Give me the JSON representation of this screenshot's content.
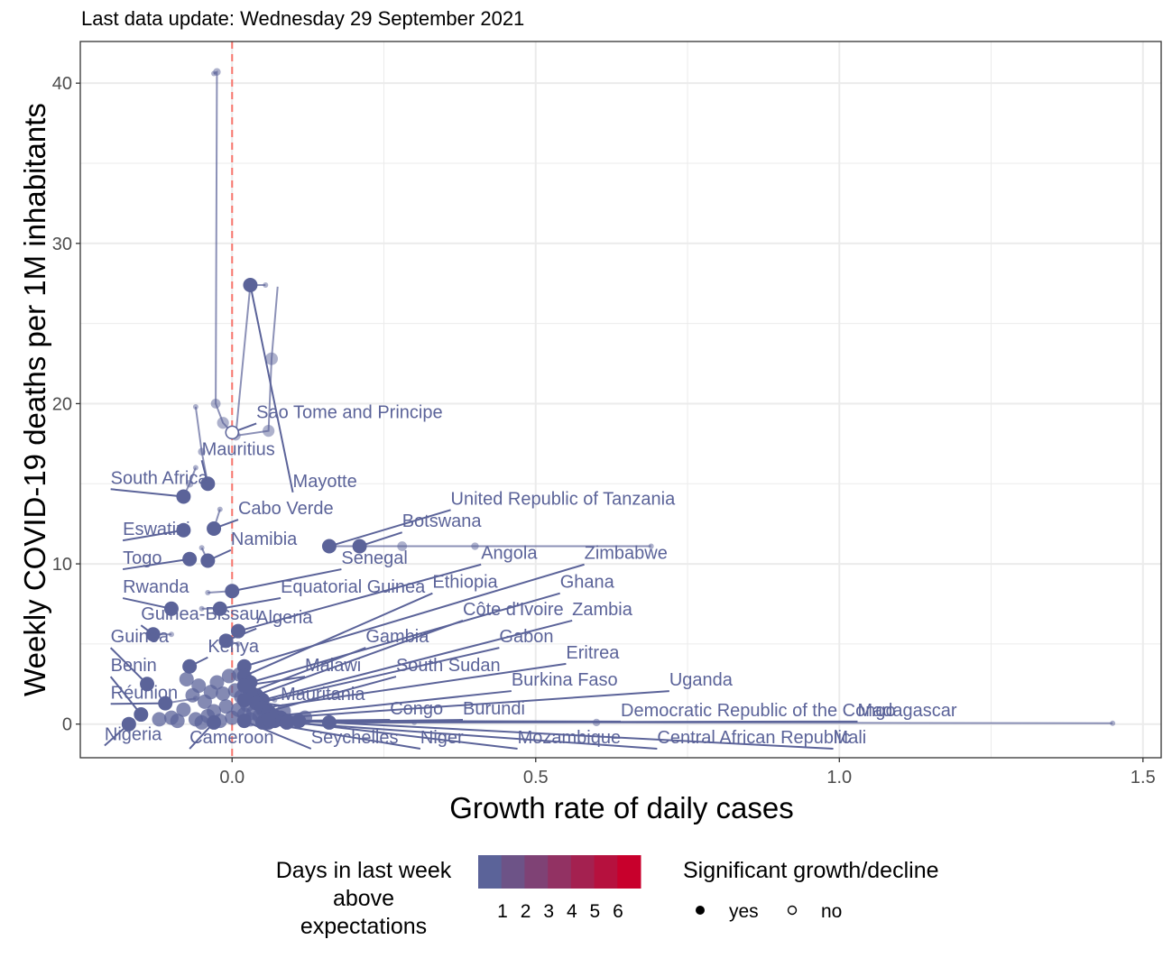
{
  "chart_data": {
    "type": "scatter",
    "subtitle": "Last data update: Wednesday 29 September 2021",
    "xlabel": "Growth rate of daily cases",
    "ylabel": "Weekly COVID-19 deaths per 1M inhabitants",
    "xlim": [
      -0.25,
      1.53
    ],
    "ylim": [
      -2.1,
      42.6
    ],
    "x_ticks": [
      0.0,
      0.5,
      1.0,
      1.5
    ],
    "x_tick_labels": [
      "0.0",
      "0.5",
      "1.0",
      "1.5"
    ],
    "y_ticks": [
      0,
      10,
      20,
      30,
      40
    ],
    "y_tick_labels": [
      "0",
      "10",
      "20",
      "30",
      "40"
    ],
    "reference_line_x": 0,
    "grid": true,
    "colors": {
      "point": "#5b6399",
      "trail": "#a6aac8",
      "reference_line": "#f8766d",
      "label": "#5b6399",
      "grid": "#ebebeb",
      "scale_low": "#5b6399",
      "scale_high": "#c8002c"
    },
    "points": [
      {
        "name": "Sao Tome and Principe",
        "x": 0.0,
        "y": 18.2,
        "significant": false,
        "label_x": 0.04,
        "label_y": 19.1,
        "trail": [
          [
            -0.03,
            40.6
          ],
          [
            -0.025,
            40.7
          ],
          [
            -0.027,
            20.0
          ],
          [
            -0.015,
            18.8
          ],
          [
            0.0,
            18.2
          ]
        ]
      },
      {
        "name": "Mauritius",
        "x": -0.04,
        "y": 15.0,
        "significant": true,
        "label_x": -0.05,
        "label_y": 16.8,
        "trail": [
          [
            -0.06,
            19.8
          ],
          [
            -0.05,
            17.0
          ],
          [
            -0.04,
            15.0
          ]
        ]
      },
      {
        "name": "Mayotte",
        "x": 0.03,
        "y": 27.4,
        "significant": true,
        "label_x": 0.1,
        "label_y": 14.8,
        "trail": [
          [
            0.055,
            27.4
          ],
          [
            0.03,
            27.4
          ],
          [
            0.006,
            18.0
          ],
          [
            0.06,
            18.3
          ],
          [
            0.065,
            22.8
          ],
          [
            0.075,
            27.3
          ]
        ]
      },
      {
        "name": "South Africa",
        "x": -0.08,
        "y": 14.2,
        "significant": true,
        "label_x": -0.2,
        "label_y": 15.0,
        "trail": [
          [
            -0.06,
            16.0
          ],
          [
            -0.07,
            15.0
          ],
          [
            -0.08,
            14.2
          ]
        ]
      },
      {
        "name": "Cabo Verde",
        "x": -0.03,
        "y": 12.2,
        "significant": true,
        "label_x": 0.01,
        "label_y": 13.1,
        "trail": [
          [
            -0.02,
            13.4
          ],
          [
            -0.03,
            12.2
          ]
        ]
      },
      {
        "name": "United Republic of Tanzania",
        "x": 0.16,
        "y": 11.1,
        "significant": true,
        "label_x": 0.36,
        "label_y": 13.7,
        "trail": [
          [
            0.69,
            11.1
          ],
          [
            0.4,
            11.1
          ],
          [
            0.28,
            11.1
          ],
          [
            0.21,
            11.1
          ],
          [
            0.16,
            11.1
          ]
        ]
      },
      {
        "name": "Botswana",
        "x": 0.21,
        "y": 11.1,
        "significant": true,
        "label_x": 0.28,
        "label_y": 12.3,
        "trail": []
      },
      {
        "name": "Eswatini",
        "x": -0.08,
        "y": 12.1,
        "significant": true,
        "label_x": -0.18,
        "label_y": 11.8,
        "trail": [
          [
            -0.08,
            12.1
          ]
        ]
      },
      {
        "name": "Namibia",
        "x": -0.04,
        "y": 10.2,
        "significant": true,
        "label_x": -0.002,
        "label_y": 11.2,
        "trail": [
          [
            -0.05,
            11.0
          ],
          [
            -0.04,
            10.2
          ]
        ]
      },
      {
        "name": "Togo",
        "x": -0.07,
        "y": 10.3,
        "significant": true,
        "label_x": -0.18,
        "label_y": 10.0,
        "trail": []
      },
      {
        "name": "Senegal",
        "x": 0.0,
        "y": 8.3,
        "significant": true,
        "label_x": 0.18,
        "label_y": 10.0,
        "trail": [
          [
            -0.04,
            8.2
          ],
          [
            0.0,
            8.3
          ]
        ]
      },
      {
        "name": "Angola",
        "x": 0.01,
        "y": 5.8,
        "significant": true,
        "label_x": 0.41,
        "label_y": 10.3,
        "trail": []
      },
      {
        "name": "Zimbabwe",
        "x": 0.02,
        "y": 3.6,
        "significant": true,
        "label_x": 0.58,
        "label_y": 10.3,
        "trail": []
      },
      {
        "name": "Rwanda",
        "x": -0.1,
        "y": 7.2,
        "significant": true,
        "label_x": -0.18,
        "label_y": 8.2,
        "trail": []
      },
      {
        "name": "Equatorial Guinea",
        "x": -0.02,
        "y": 7.2,
        "significant": true,
        "label_x": 0.08,
        "label_y": 8.2,
        "trail": [
          [
            -0.05,
            7.2
          ],
          [
            -0.02,
            7.2
          ]
        ]
      },
      {
        "name": "Ethiopia",
        "x": 0.02,
        "y": 3.0,
        "significant": true,
        "label_x": 0.33,
        "label_y": 8.5,
        "trail": []
      },
      {
        "name": "Ghana",
        "x": 0.03,
        "y": 2.6,
        "significant": true,
        "label_x": 0.54,
        "label_y": 8.5,
        "trail": []
      },
      {
        "name": "Guinea-Bissau",
        "x": -0.13,
        "y": 5.6,
        "significant": true,
        "label_x": -0.15,
        "label_y": 6.5,
        "trail": [
          [
            -0.1,
            5.6
          ],
          [
            -0.13,
            5.6
          ]
        ]
      },
      {
        "name": "Algeria",
        "x": -0.01,
        "y": 5.2,
        "significant": true,
        "label_x": 0.04,
        "label_y": 6.3,
        "trail": [
          [
            0.01,
            5.0
          ],
          [
            -0.01,
            5.2
          ]
        ]
      },
      {
        "name": "Côte d'Ivoire",
        "x": 0.04,
        "y": 1.8,
        "significant": true,
        "label_x": 0.38,
        "label_y": 6.8,
        "trail": []
      },
      {
        "name": "Zambia",
        "x": 0.05,
        "y": 1.5,
        "significant": true,
        "label_x": 0.56,
        "label_y": 6.8,
        "trail": []
      },
      {
        "name": "Guinea",
        "x": -0.14,
        "y": 2.5,
        "significant": true,
        "label_x": -0.2,
        "label_y": 5.1,
        "trail": []
      },
      {
        "name": "Gambia",
        "x": 0.03,
        "y": 2.0,
        "significant": true,
        "label_x": 0.22,
        "label_y": 5.1,
        "trail": []
      },
      {
        "name": "Gabon",
        "x": 0.04,
        "y": 1.3,
        "significant": true,
        "label_x": 0.44,
        "label_y": 5.1,
        "trail": []
      },
      {
        "name": "Kenya",
        "x": -0.07,
        "y": 3.6,
        "significant": true,
        "label_x": -0.04,
        "label_y": 4.5,
        "trail": []
      },
      {
        "name": "Eritrea",
        "x": 0.05,
        "y": 1.0,
        "significant": true,
        "label_x": 0.55,
        "label_y": 4.1,
        "trail": []
      },
      {
        "name": "Benin",
        "x": -0.15,
        "y": 0.6,
        "significant": true,
        "label_x": -0.2,
        "label_y": 3.3,
        "trail": []
      },
      {
        "name": "Malawi",
        "x": 0.02,
        "y": 2.4,
        "significant": true,
        "label_x": 0.12,
        "label_y": 3.3,
        "trail": []
      },
      {
        "name": "South Sudan",
        "x": 0.06,
        "y": 0.8,
        "significant": true,
        "label_x": 0.27,
        "label_y": 3.3,
        "trail": []
      },
      {
        "name": "Burkina Faso",
        "x": 0.07,
        "y": 0.5,
        "significant": true,
        "label_x": 0.46,
        "label_y": 2.4,
        "trail": []
      },
      {
        "name": "Uganda",
        "x": 0.08,
        "y": 0.4,
        "significant": true,
        "label_x": 0.72,
        "label_y": 2.4,
        "trail": []
      },
      {
        "name": "Réunion",
        "x": -0.11,
        "y": 1.3,
        "significant": true,
        "label_x": -0.2,
        "label_y": 1.6,
        "trail": [
          [
            -0.06,
            1.6
          ],
          [
            -0.11,
            1.3
          ]
        ]
      },
      {
        "name": "Mauritania",
        "x": 0.02,
        "y": 1.5,
        "significant": true,
        "label_x": 0.08,
        "label_y": 1.5,
        "trail": [
          [
            0.07,
            1.5
          ],
          [
            0.02,
            1.5
          ]
        ]
      },
      {
        "name": "Congo",
        "x": 0.07,
        "y": 0.2,
        "significant": true,
        "label_x": 0.26,
        "label_y": 0.6,
        "trail": []
      },
      {
        "name": "Burundi",
        "x": 0.06,
        "y": 0.1,
        "significant": true,
        "label_x": 0.38,
        "label_y": 0.6,
        "trail": []
      },
      {
        "name": "Democratic Republic of the Congo",
        "x": 0.09,
        "y": 0.2,
        "significant": true,
        "label_x": 0.64,
        "label_y": 0.5,
        "trail": []
      },
      {
        "name": "Madagascar",
        "x": 0.16,
        "y": 0.1,
        "significant": true,
        "label_x": 1.03,
        "label_y": 0.5,
        "trail": [
          [
            1.45,
            0.05
          ],
          [
            0.6,
            0.1
          ],
          [
            0.16,
            0.1
          ]
        ]
      },
      {
        "name": "Nigeria",
        "x": -0.17,
        "y": 0.0,
        "significant": true,
        "label_x": -0.21,
        "label_y": -1.0,
        "trail": []
      },
      {
        "name": "Cameroon",
        "x": -0.03,
        "y": 0.1,
        "significant": true,
        "label_x": -0.07,
        "label_y": -1.2,
        "trail": []
      },
      {
        "name": "Seychelles",
        "x": 0.02,
        "y": 0.2,
        "significant": true,
        "label_x": 0.13,
        "label_y": -1.2,
        "trail": []
      },
      {
        "name": "Niger",
        "x": 0.05,
        "y": 0.1,
        "significant": true,
        "label_x": 0.31,
        "label_y": -1.2,
        "trail": []
      },
      {
        "name": "Mozambique",
        "x": 0.06,
        "y": 0.3,
        "significant": true,
        "label_x": 0.47,
        "label_y": -1.2,
        "trail": []
      },
      {
        "name": "Central African Republic",
        "x": 0.09,
        "y": 0.1,
        "significant": true,
        "label_x": 0.7,
        "label_y": -1.2,
        "trail": []
      },
      {
        "name": "Mali",
        "x": 0.11,
        "y": 0.2,
        "significant": true,
        "label_x": 0.99,
        "label_y": -1.2,
        "trail": [
          [
            0.3,
            0.1
          ],
          [
            0.11,
            0.2
          ]
        ]
      }
    ],
    "cluster_points": [
      [
        -0.06,
        0.3
      ],
      [
        -0.05,
        0.1
      ],
      [
        -0.04,
        0.5
      ],
      [
        -0.03,
        0.8
      ],
      [
        -0.02,
        0.2
      ],
      [
        -0.01,
        1.1
      ],
      [
        0.0,
        0.4
      ],
      [
        0.01,
        0.9
      ],
      [
        0.015,
        1.7
      ],
      [
        0.02,
        0.6
      ],
      [
        0.025,
        1.2
      ],
      [
        0.03,
        0.3
      ],
      [
        0.035,
        0.7
      ],
      [
        0.04,
        1.6
      ],
      [
        0.045,
        0.5
      ],
      [
        0.05,
        0.9
      ],
      [
        0.055,
        0.2
      ],
      [
        0.06,
        0.6
      ],
      [
        -0.065,
        1.8
      ],
      [
        -0.055,
        2.4
      ],
      [
        -0.045,
        1.4
      ],
      [
        -0.035,
        2.0
      ],
      [
        -0.025,
        2.6
      ],
      [
        -0.015,
        1.9
      ],
      [
        -0.005,
        3.0
      ],
      [
        0.005,
        2.1
      ],
      [
        0.012,
        3.1
      ],
      [
        -0.09,
        0.2
      ],
      [
        -0.1,
        0.4
      ],
      [
        -0.12,
        0.3
      ],
      [
        -0.08,
        0.9
      ],
      [
        -0.075,
        2.8
      ],
      [
        0.075,
        0.3
      ],
      [
        0.085,
        0.8
      ],
      [
        0.1,
        0.2
      ],
      [
        0.12,
        0.4
      ]
    ],
    "legend": {
      "color_title_lines": [
        "Days in last week",
        "above",
        "expectations"
      ],
      "color_scale_labels": [
        "1",
        "2",
        "3",
        "4",
        "5",
        "6"
      ],
      "shape_title": "Significant growth/decline",
      "shape_items": [
        {
          "label": "yes",
          "filled": true
        },
        {
          "label": "no",
          "filled": false
        }
      ]
    }
  }
}
